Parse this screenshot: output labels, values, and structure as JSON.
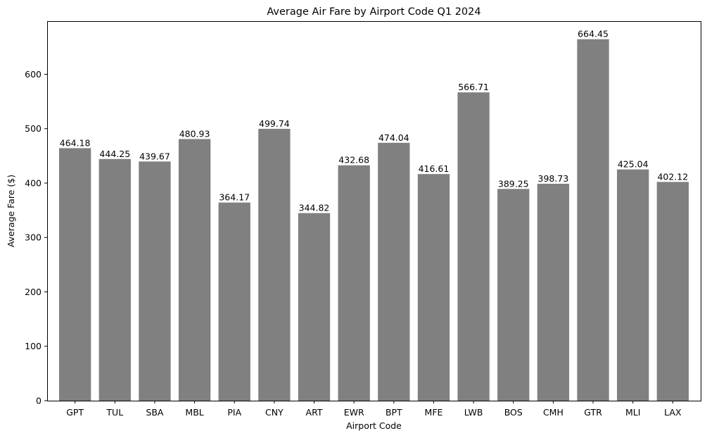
{
  "chart_data": {
    "type": "bar",
    "title": "Average Air Fare by Airport Code Q1 2024",
    "xlabel": "Airport Code",
    "ylabel": "Average Fare ($)",
    "categories": [
      "GPT",
      "TUL",
      "SBA",
      "MBL",
      "PIA",
      "CNY",
      "ART",
      "EWR",
      "BPT",
      "MFE",
      "LWB",
      "BOS",
      "CMH",
      "GTR",
      "MLI",
      "LAX"
    ],
    "values": [
      464.18,
      444.25,
      439.67,
      480.93,
      364.17,
      499.74,
      344.82,
      432.68,
      474.04,
      416.61,
      566.71,
      389.25,
      398.73,
      664.45,
      425.04,
      402.12
    ],
    "data_labels": [
      "464.18",
      "444.25",
      "439.67",
      "480.93",
      "364.17",
      "499.74",
      "344.82",
      "432.68",
      "474.04",
      "416.61",
      "566.71",
      "389.25",
      "398.73",
      "664.45",
      "425.04",
      "402.12"
    ],
    "yticks": [
      0,
      100,
      200,
      300,
      400,
      500,
      600
    ],
    "ylim": [
      0,
      697.67
    ],
    "bar_color": "#808080",
    "grid": false,
    "legend": "none"
  }
}
